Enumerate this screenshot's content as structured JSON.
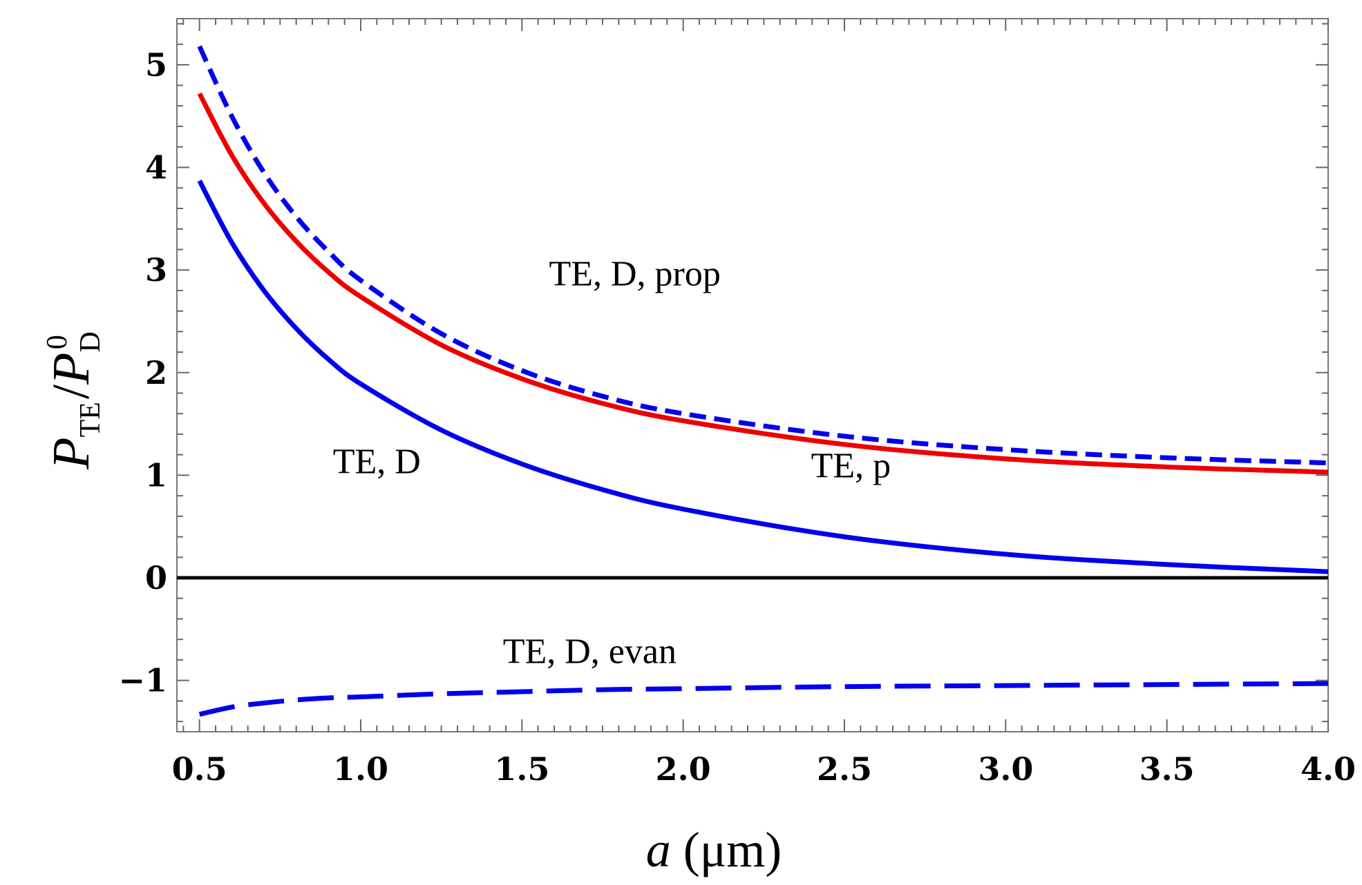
{
  "chart_data": {
    "type": "line",
    "xlabel": "a",
    "xlabel_unit": "(μm)",
    "ylabel_main": "P",
    "ylabel_sub": "TE",
    "ylabel_sep": "/",
    "ylabel_main2": "P",
    "ylabel_sub2": "D",
    "ylabel_sup2": "0",
    "xlim": [
      0.43,
      4.0
    ],
    "ylim": [
      -1.5,
      5.45
    ],
    "x_ticks": [
      0.5,
      1.0,
      1.5,
      2.0,
      2.5,
      3.0,
      3.5,
      4.0
    ],
    "x_tick_labels": [
      "0.5",
      "1.0",
      "1.5",
      "2.0",
      "2.5",
      "3.0",
      "3.5",
      "4.0"
    ],
    "y_ticks": [
      -1,
      0,
      1,
      2,
      3,
      4,
      5
    ],
    "y_tick_labels": [
      "−1",
      "0",
      "1",
      "2",
      "3",
      "4",
      "5"
    ],
    "x": [
      0.5,
      0.6,
      0.7,
      0.8,
      0.9,
      1.0,
      1.25,
      1.5,
      1.75,
      2.0,
      2.5,
      3.0,
      3.5,
      4.0
    ],
    "series": [
      {
        "name": "TE, D, prop",
        "color": "#0000ee",
        "style": "short-dash",
        "values": [
          5.18,
          4.5,
          3.95,
          3.52,
          3.18,
          2.9,
          2.38,
          2.02,
          1.77,
          1.6,
          1.38,
          1.25,
          1.17,
          1.12
        ]
      },
      {
        "name": "TE, p",
        "color": "#ee0000",
        "style": "solid",
        "values": [
          4.72,
          4.12,
          3.65,
          3.28,
          2.98,
          2.74,
          2.27,
          1.94,
          1.7,
          1.53,
          1.3,
          1.16,
          1.08,
          1.03
        ]
      },
      {
        "name": "TE, D",
        "color": "#0000ee",
        "style": "solid",
        "values": [
          3.87,
          3.27,
          2.8,
          2.43,
          2.13,
          1.89,
          1.44,
          1.11,
          0.86,
          0.67,
          0.4,
          0.23,
          0.13,
          0.06
        ]
      },
      {
        "name": "TE, D, evan",
        "color": "#0000ee",
        "style": "long-dash",
        "values": [
          -1.33,
          -1.26,
          -1.22,
          -1.19,
          -1.17,
          -1.16,
          -1.13,
          -1.11,
          -1.09,
          -1.08,
          -1.06,
          -1.05,
          -1.04,
          -1.03
        ]
      }
    ],
    "annotations": [
      {
        "id": "prop",
        "text": "TE, D, prop",
        "x": 1.85,
        "y": 2.85
      },
      {
        "id": "p",
        "text": "TE, p",
        "x": 2.52,
        "y": 0.98
      },
      {
        "id": "d",
        "text": "TE, D",
        "x": 1.05,
        "y": 1.02
      },
      {
        "id": "evan",
        "text": "TE, D, evan",
        "x": 1.71,
        "y": -0.83
      }
    ],
    "zero_line": true
  }
}
